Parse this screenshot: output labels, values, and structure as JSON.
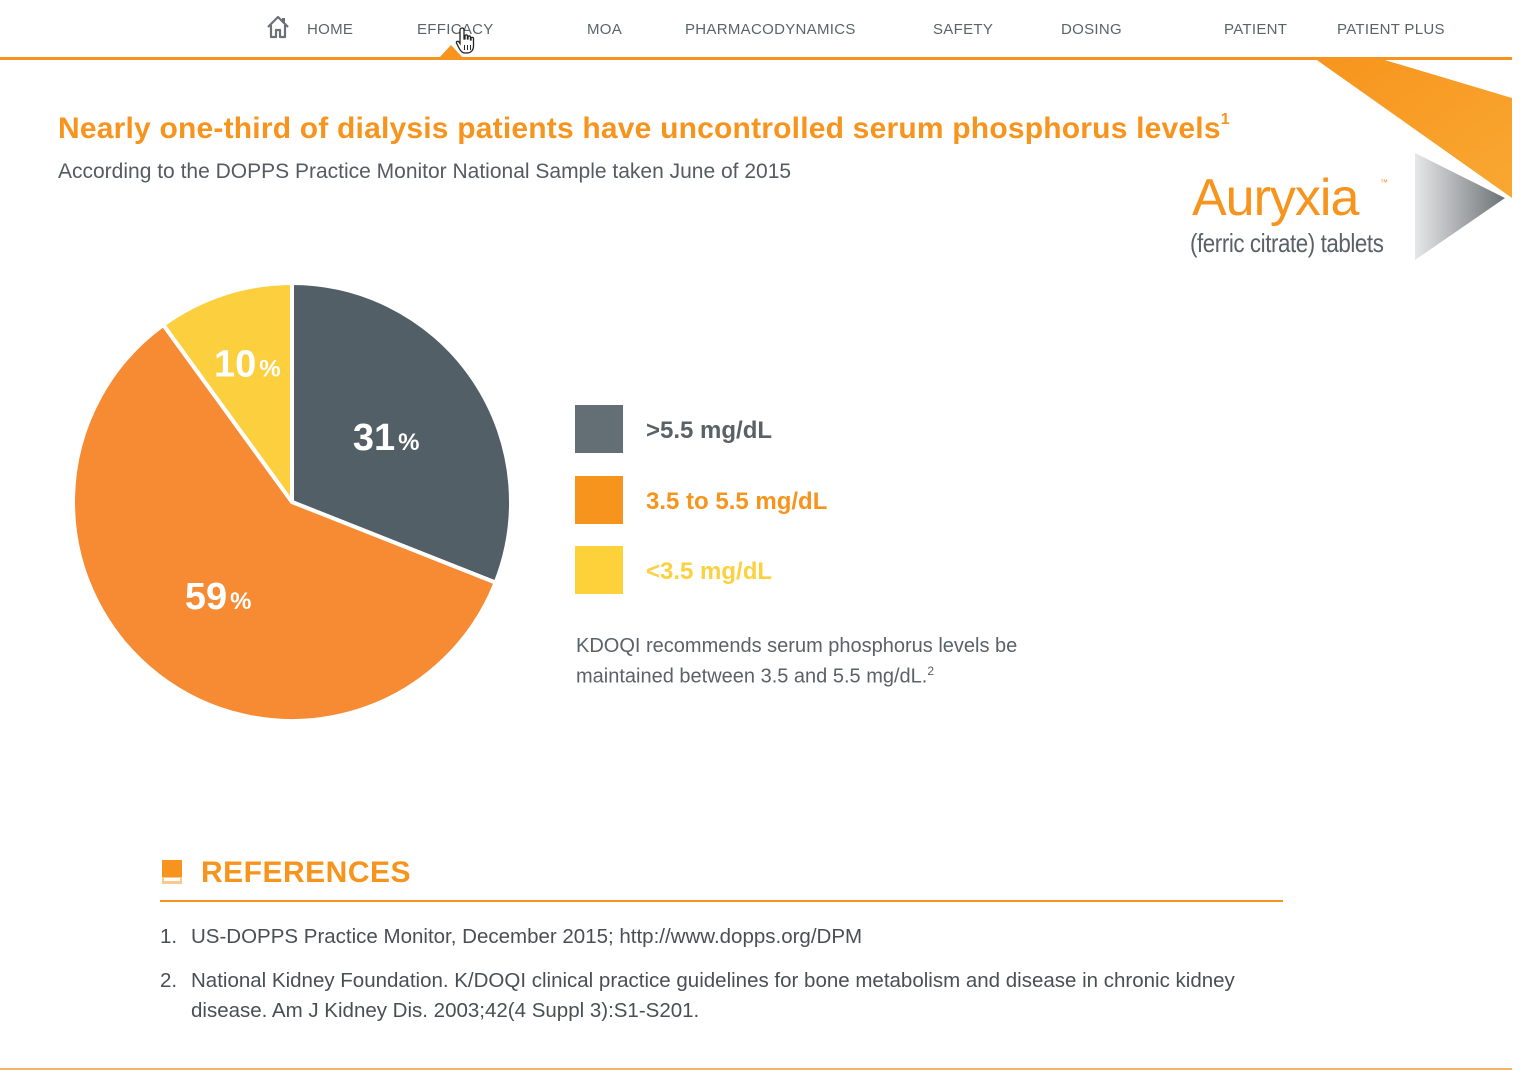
{
  "nav": {
    "items": [
      {
        "label": "HOME"
      },
      {
        "label": "EFFICACY"
      },
      {
        "label": "MOA"
      },
      {
        "label": "PHARMACODYNAMICS"
      },
      {
        "label": "SAFETY"
      },
      {
        "label": "DOSING"
      },
      {
        "label": "PATIENT"
      },
      {
        "label": "PATIENT PLUS"
      }
    ],
    "active": "EFFICACY",
    "home_icon": "house-icon"
  },
  "headline": {
    "text": "Nearly one-third of dialysis patients have uncontrolled serum phosphorus levels",
    "sup": "1"
  },
  "subhead": "According to the DOPPS Practice Monitor National Sample taken June of 2015",
  "logo": {
    "name": "Auryxia",
    "tm": "™",
    "sub": "(ferric citrate) tablets"
  },
  "chart_data": {
    "type": "pie",
    "slices": [
      {
        "label": ">5.5 mg/dL",
        "value": 31,
        "display": "31",
        "color": "#525f66"
      },
      {
        "label": "3.5 to 5.5 mg/dL",
        "value": 59,
        "display": "59",
        "color": "#f68b33"
      },
      {
        "label": "<3.5 mg/dL",
        "value": 10,
        "display": "10",
        "color": "#fccf3e"
      }
    ],
    "unit": "%"
  },
  "legend": {
    "items": [
      {
        "label": ">5.5 mg/dL",
        "color": "#646e75",
        "text_color": "#5b6267"
      },
      {
        "label": "3.5 to 5.5 mg/dL",
        "color": "#f7941d",
        "text_color": "#f7941d"
      },
      {
        "label": "<3.5 mg/dL",
        "color": "#fdd13a",
        "text_color": "#fcd13f"
      }
    ]
  },
  "note": {
    "text": "KDOQI recommends serum phosphorus levels be maintained between 3.5 and 5.5 mg/dL.",
    "sup": "2"
  },
  "references": {
    "title": "REFERENCES",
    "items": [
      {
        "num": "1.",
        "text": "US-DOPPS Practice Monitor, December 2015; http://www.dopps.org/DPM"
      },
      {
        "num": "2.",
        "text": "National Kidney Foundation. K/DOQI clinical practice guidelines for bone metabolism and disease in chronic kidney disease. Am J Kidney Dis. 2003;42(4 Suppl 3):S1-S201."
      }
    ]
  },
  "colors": {
    "accent": "#f7941d",
    "slate": "#525f66",
    "yellow": "#fccf3e"
  }
}
